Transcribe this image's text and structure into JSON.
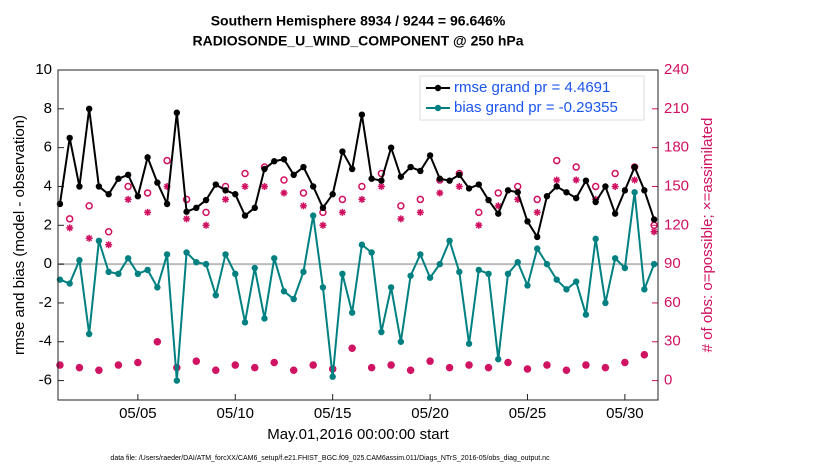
{
  "chart_data": {
    "type": "line",
    "title": [
      "Southern Hemisphere 8934 / 9244 = 96.646%",
      "RADIOSONDE_U_WIND_COMPONENT @ 250 hPa"
    ],
    "xlabel": "May.01,2016 00:00:00 start",
    "ylabel": "rmse and bias (model - observation)",
    "y2label": "# of obs: o=possible; ×=assimilated",
    "footnote": "data file: /Users/raeder/DAI/ATM_forcXX/CAM6_setup/f.e21.FHIST_BGC.f09_025.CAM6assim.011/Diags_NTrS_2016-05/obs_diag_output.nc",
    "xlim": [
      -0.1,
      30.7
    ],
    "xticks": [
      {
        "value": 4,
        "label": "05/05"
      },
      {
        "value": 9,
        "label": "05/10"
      },
      {
        "value": 14,
        "label": "05/15"
      },
      {
        "value": 19,
        "label": "05/20"
      },
      {
        "value": 24,
        "label": "05/25"
      },
      {
        "value": 29,
        "label": "05/30"
      }
    ],
    "ylim": [
      -7,
      10
    ],
    "yticks": [
      -6,
      -4,
      -2,
      0,
      2,
      4,
      6,
      8,
      10
    ],
    "y2lim": [
      -15,
      240
    ],
    "y2ticks": [
      0,
      30,
      60,
      90,
      120,
      150,
      180,
      210,
      240
    ],
    "legend": "northeast",
    "x": [
      0,
      0.5,
      1,
      1.5,
      2,
      2.5,
      3,
      3.5,
      4,
      4.5,
      5,
      5.5,
      6,
      6.5,
      7,
      7.5,
      8,
      8.5,
      9,
      9.5,
      10,
      10.5,
      11,
      11.5,
      12,
      12.5,
      13,
      13.5,
      14,
      14.5,
      15,
      15.5,
      16,
      16.5,
      17,
      17.5,
      18,
      18.5,
      19,
      19.5,
      20,
      20.5,
      21,
      21.5,
      22,
      22.5,
      23,
      23.5,
      24,
      24.5,
      25,
      25.5,
      26,
      26.5,
      27,
      27.5,
      28,
      28.5,
      29,
      29.5,
      30,
      30.5
    ],
    "series": [
      {
        "name": "rmse grand pr = 4.4691",
        "color": "#000000",
        "marker": "filled-circle",
        "line": true,
        "values": [
          3.1,
          6.5,
          4.0,
          8.0,
          4.0,
          3.6,
          4.4,
          4.6,
          3.5,
          5.5,
          4.2,
          3.1,
          7.8,
          2.7,
          2.9,
          3.3,
          4.1,
          3.8,
          3.6,
          2.5,
          2.9,
          4.9,
          5.3,
          5.4,
          4.6,
          5.0,
          4.0,
          2.9,
          3.6,
          5.8,
          4.9,
          7.7,
          4.4,
          4.3,
          6.0,
          4.5,
          5.0,
          4.8,
          5.6,
          4.4,
          4.3,
          4.6,
          3.9,
          4.1,
          3.3,
          2.6,
          3.8,
          3.7,
          2.2,
          1.4,
          3.5,
          4.0,
          3.7,
          3.4,
          4.3,
          3.2,
          4.0,
          2.6,
          3.8,
          5.0,
          3.8,
          2.3
        ]
      },
      {
        "name": "bias grand pr = -0.29355",
        "color": "#008080",
        "marker": "filled-circle",
        "line": true,
        "values": [
          -0.8,
          -1.0,
          0.2,
          -3.6,
          1.2,
          -0.4,
          -0.5,
          0.3,
          -0.5,
          -0.3,
          -1.2,
          0.5,
          -6.0,
          0.6,
          0.1,
          0.0,
          -1.6,
          0.5,
          -0.5,
          -3.0,
          -0.2,
          -2.8,
          0.3,
          -1.4,
          -1.8,
          -0.4,
          2.5,
          -1.2,
          -5.8,
          -0.5,
          -2.5,
          1.0,
          0.6,
          -3.5,
          -1.2,
          -4.0,
          -0.6,
          0.5,
          -0.7,
          0.0,
          1.2,
          -0.4,
          -4.1,
          -0.3,
          -0.5,
          -4.9,
          -0.5,
          0.1,
          -1.1,
          0.8,
          0.0,
          -0.8,
          -1.3,
          -0.9,
          -2.6,
          1.3,
          -2.0,
          0.3,
          -0.2,
          3.7,
          -1.3,
          0.0
        ]
      },
      {
        "color": "#d01060",
        "marker": "open-circle",
        "line": false,
        "axis": "y2",
        "values": [
          12,
          125,
          10,
          135,
          8,
          115,
          12,
          150,
          14,
          145,
          30,
          170,
          10,
          140,
          15,
          130,
          8,
          150,
          12,
          160,
          10,
          165,
          14,
          155,
          8,
          145,
          12,
          130,
          9,
          140,
          25,
          150,
          10,
          160,
          12,
          135,
          8,
          140,
          15,
          155,
          10,
          160,
          12,
          130,
          10,
          145,
          14,
          150,
          9,
          140,
          12,
          170,
          8,
          165,
          12,
          150,
          10,
          160,
          14,
          165,
          20,
          120
        ]
      },
      {
        "color": "#d01060",
        "marker": "asterisk",
        "line": false,
        "axis": "y2",
        "values": [
          12,
          118,
          10,
          110,
          8,
          105,
          12,
          140,
          14,
          130,
          30,
          150,
          10,
          125,
          15,
          120,
          8,
          140,
          12,
          150,
          10,
          150,
          14,
          145,
          8,
          135,
          12,
          120,
          9,
          130,
          25,
          140,
          10,
          150,
          12,
          125,
          8,
          130,
          15,
          145,
          10,
          150,
          12,
          120,
          10,
          135,
          14,
          140,
          9,
          130,
          12,
          155,
          8,
          155,
          12,
          140,
          10,
          150,
          14,
          155,
          20,
          115
        ]
      }
    ],
    "legend_text_color": "#1a55ee"
  }
}
